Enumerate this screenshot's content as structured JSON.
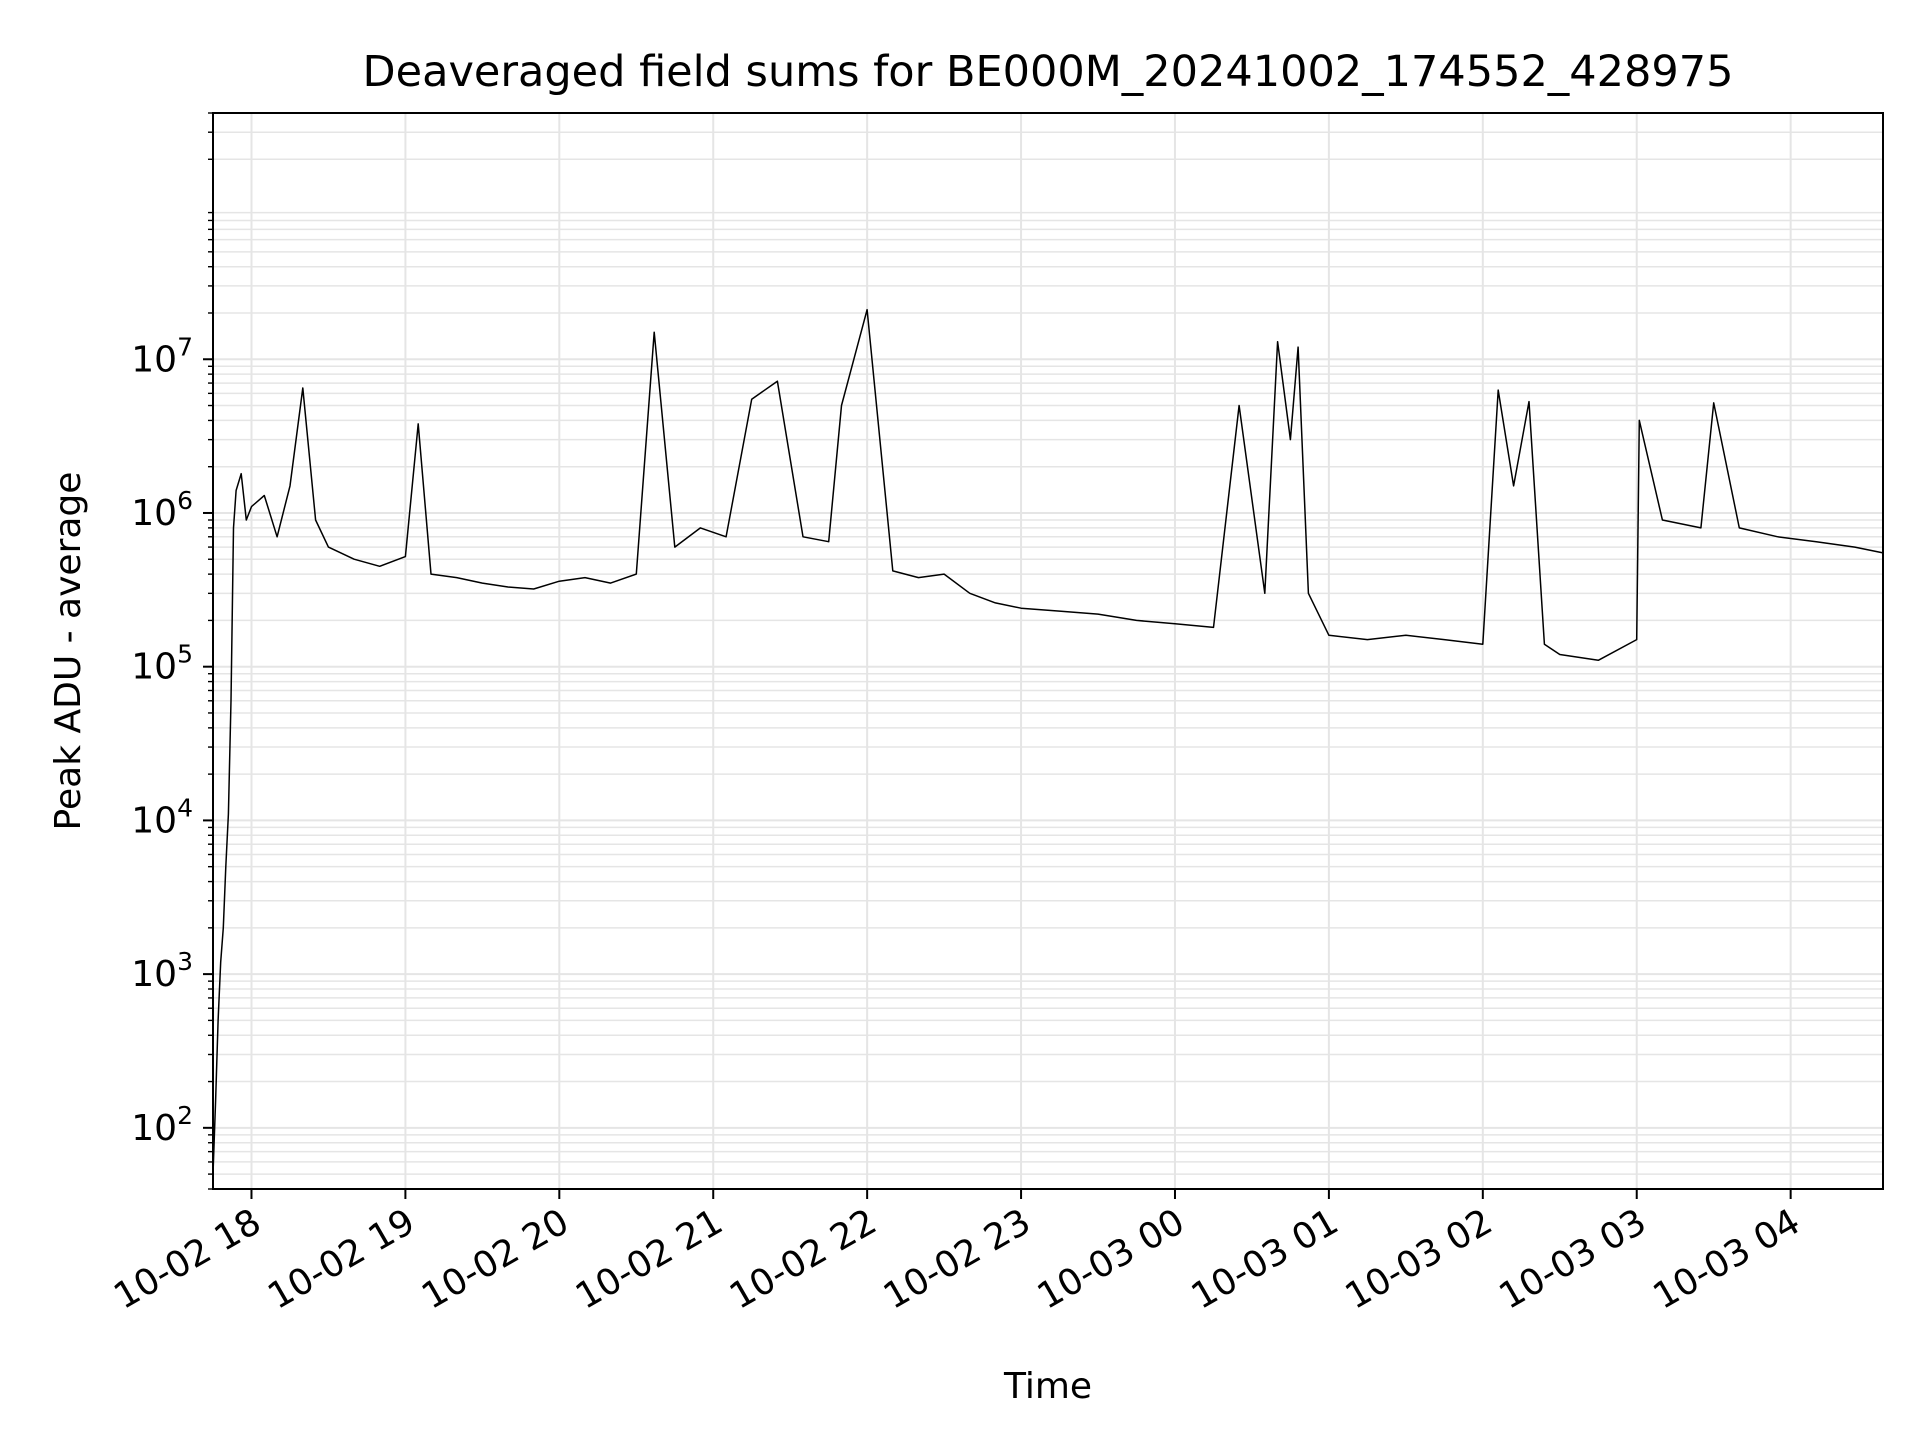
{
  "chart_data": {
    "type": "line",
    "title": "Deaveraged field sums for BE000M_20241002_174552_428975",
    "xlabel": "Time",
    "ylabel": "Peak ADU - average",
    "yscale": "log",
    "ylim": [
      40,
      400000000
    ],
    "xlim": [
      "10-02 17:45",
      "10-03 04:36"
    ],
    "grid": true,
    "line_color": "#000000",
    "grid_color": "#e5e5e5",
    "xticks": [
      {
        "time": "10-02 18:00",
        "label": "10-02 18"
      },
      {
        "time": "10-02 19:00",
        "label": "10-02 19"
      },
      {
        "time": "10-02 20:00",
        "label": "10-02 20"
      },
      {
        "time": "10-02 21:00",
        "label": "10-02 21"
      },
      {
        "time": "10-02 22:00",
        "label": "10-02 22"
      },
      {
        "time": "10-02 23:00",
        "label": "10-02 23"
      },
      {
        "time": "10-03 00:00",
        "label": "10-03 00"
      },
      {
        "time": "10-03 01:00",
        "label": "10-03 01"
      },
      {
        "time": "10-03 02:00",
        "label": "10-03 02"
      },
      {
        "time": "10-03 03:00",
        "label": "10-03 03"
      },
      {
        "time": "10-03 04:00",
        "label": "10-03 04"
      }
    ],
    "yticks": [
      {
        "value": 100,
        "base": "10",
        "exp": "2"
      },
      {
        "value": 1000,
        "base": "10",
        "exp": "3"
      },
      {
        "value": 10000,
        "base": "10",
        "exp": "4"
      },
      {
        "value": 100000,
        "base": "10",
        "exp": "5"
      },
      {
        "value": 1000000,
        "base": "10",
        "exp": "6"
      },
      {
        "value": 10000000,
        "base": "10",
        "exp": "7"
      }
    ],
    "series": [
      {
        "points": [
          [
            "10-02 17:45",
            50
          ],
          [
            "10-02 17:46",
            150
          ],
          [
            "10-02 17:47",
            500
          ],
          [
            "10-02 17:48",
            1200
          ],
          [
            "10-02 17:49",
            2000
          ],
          [
            "10-02 17:50",
            5000
          ],
          [
            "10-02 17:51",
            11000
          ],
          [
            "10-02 17:52",
            60000
          ],
          [
            "10-02 17:53",
            800000
          ],
          [
            "10-02 17:54",
            1400000
          ],
          [
            "10-02 17:56",
            1800000
          ],
          [
            "10-02 17:58",
            900000
          ],
          [
            "10-02 18:00",
            1100000
          ],
          [
            "10-02 18:05",
            1300000
          ],
          [
            "10-02 18:10",
            700000
          ],
          [
            "10-02 18:15",
            1500000
          ],
          [
            "10-02 18:20",
            6500000
          ],
          [
            "10-02 18:25",
            900000
          ],
          [
            "10-02 18:30",
            600000
          ],
          [
            "10-02 18:40",
            500000
          ],
          [
            "10-02 18:50",
            450000
          ],
          [
            "10-02 19:00",
            520000
          ],
          [
            "10-02 19:05",
            3800000
          ],
          [
            "10-02 19:10",
            400000
          ],
          [
            "10-02 19:20",
            380000
          ],
          [
            "10-02 19:30",
            350000
          ],
          [
            "10-02 19:40",
            330000
          ],
          [
            "10-02 19:50",
            320000
          ],
          [
            "10-02 20:00",
            360000
          ],
          [
            "10-02 20:10",
            380000
          ],
          [
            "10-02 20:20",
            350000
          ],
          [
            "10-02 20:30",
            400000
          ],
          [
            "10-02 20:37",
            15000000
          ],
          [
            "10-02 20:45",
            600000
          ],
          [
            "10-02 20:55",
            800000
          ],
          [
            "10-02 21:05",
            700000
          ],
          [
            "10-02 21:15",
            5500000
          ],
          [
            "10-02 21:25",
            7200000
          ],
          [
            "10-02 21:35",
            700000
          ],
          [
            "10-02 21:45",
            650000
          ],
          [
            "10-02 21:50",
            5000000
          ],
          [
            "10-02 22:00",
            21000000
          ],
          [
            "10-02 22:10",
            420000
          ],
          [
            "10-02 22:20",
            380000
          ],
          [
            "10-02 22:30",
            400000
          ],
          [
            "10-02 22:40",
            300000
          ],
          [
            "10-02 22:50",
            260000
          ],
          [
            "10-02 23:00",
            240000
          ],
          [
            "10-02 23:15",
            230000
          ],
          [
            "10-02 23:30",
            220000
          ],
          [
            "10-02 23:45",
            200000
          ],
          [
            "10-03 00:00",
            190000
          ],
          [
            "10-03 00:15",
            180000
          ],
          [
            "10-03 00:25",
            5000000
          ],
          [
            "10-03 00:35",
            300000
          ],
          [
            "10-03 00:40",
            13000000
          ],
          [
            "10-03 00:45",
            3000000
          ],
          [
            "10-03 00:48",
            12000000
          ],
          [
            "10-03 00:52",
            300000
          ],
          [
            "10-03 01:00",
            160000
          ],
          [
            "10-03 01:15",
            150000
          ],
          [
            "10-03 01:30",
            160000
          ],
          [
            "10-03 01:45",
            150000
          ],
          [
            "10-03 02:00",
            140000
          ],
          [
            "10-03 02:06",
            6300000
          ],
          [
            "10-03 02:12",
            1500000
          ],
          [
            "10-03 02:18",
            5300000
          ],
          [
            "10-03 02:24",
            140000
          ],
          [
            "10-03 02:30",
            120000
          ],
          [
            "10-03 02:45",
            110000
          ],
          [
            "10-03 03:00",
            150000
          ],
          [
            "10-03 03:01",
            4000000
          ],
          [
            "10-03 03:10",
            900000
          ],
          [
            "10-03 03:25",
            800000
          ],
          [
            "10-03 03:30",
            5200000
          ],
          [
            "10-03 03:40",
            800000
          ],
          [
            "10-03 03:55",
            700000
          ],
          [
            "10-03 04:10",
            650000
          ],
          [
            "10-03 04:25",
            600000
          ],
          [
            "10-03 04:36",
            550000
          ]
        ]
      }
    ]
  }
}
